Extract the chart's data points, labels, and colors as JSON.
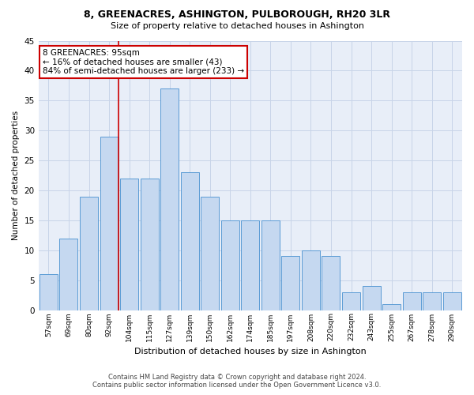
{
  "title": "8, GREENACRES, ASHINGTON, PULBOROUGH, RH20 3LR",
  "subtitle": "Size of property relative to detached houses in Ashington",
  "xlabel": "Distribution of detached houses by size in Ashington",
  "ylabel": "Number of detached properties",
  "categories": [
    "57sqm",
    "69sqm",
    "80sqm",
    "92sqm",
    "104sqm",
    "115sqm",
    "127sqm",
    "139sqm",
    "150sqm",
    "162sqm",
    "174sqm",
    "185sqm",
    "197sqm",
    "208sqm",
    "220sqm",
    "232sqm",
    "243sqm",
    "255sqm",
    "267sqm",
    "278sqm",
    "290sqm"
  ],
  "values": [
    6,
    12,
    19,
    29,
    22,
    22,
    37,
    23,
    19,
    15,
    15,
    15,
    9,
    10,
    9,
    3,
    4,
    1,
    3,
    3,
    3
  ],
  "bar_color": "#c5d8f0",
  "bar_edge_color": "#5b9bd5",
  "grid_color": "#c8d4e8",
  "bg_color": "#e8eef8",
  "vline_color": "#cc0000",
  "annotation_text": "8 GREENACRES: 95sqm\n← 16% of detached houses are smaller (43)\n84% of semi-detached houses are larger (233) →",
  "annotation_box_color": "#ffffff",
  "annotation_box_edge": "#cc0000",
  "footer_line1": "Contains HM Land Registry data © Crown copyright and database right 2024.",
  "footer_line2": "Contains public sector information licensed under the Open Government Licence v3.0.",
  "ylim": [
    0,
    45
  ],
  "yticks": [
    0,
    5,
    10,
    15,
    20,
    25,
    30,
    35,
    40,
    45
  ]
}
